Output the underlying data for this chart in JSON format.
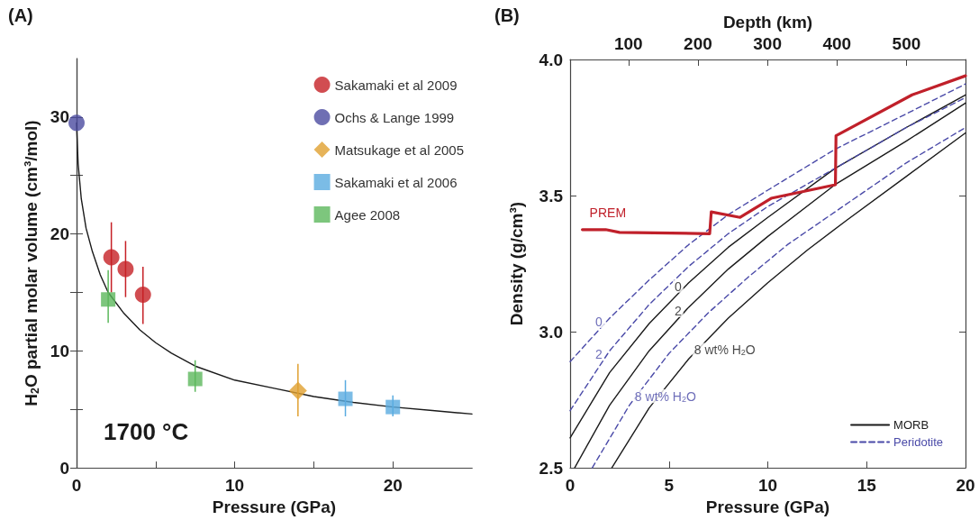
{
  "chart_data": [
    {
      "type": "scatter",
      "title": "(A)",
      "xlabel": "Pressure (GPa)",
      "ylabel": "H$_{2}$O partial molar volume (cm³/mol)",
      "xlim": [
        0,
        25
      ],
      "xticks": [
        0,
        {
          "value": 5,
          "label": null
        },
        10,
        {
          "value": 15,
          "label": null
        },
        20
      ],
      "ylim": [
        0,
        35
      ],
      "yticks": [
        0,
        {
          "value": 5,
          "label": null
        },
        10,
        {
          "value": 15,
          "label": null
        },
        20,
        {
          "value": 25,
          "label": null
        },
        30
      ],
      "grid": false,
      "legend": "top right",
      "annotations": [
        "1700 °C"
      ],
      "series": [
        {
          "type": "line",
          "color": "#1a1a1a",
          "marker": "none",
          "line_style": "solid",
          "x": [
            0,
            0.1,
            0.3,
            0.6,
            1,
            1.5,
            2,
            3,
            4,
            5,
            6,
            7.5,
            10,
            12.5,
            15,
            17.5,
            20,
            22.5,
            25
          ],
          "values": [
            29.5,
            26,
            23,
            20.5,
            18.5,
            16.5,
            15,
            13.2,
            11.8,
            10.7,
            9.8,
            8.7,
            7.5,
            6.8,
            6.1,
            5.6,
            5.2,
            4.9,
            4.6
          ]
        },
        {
          "name": "Sakamaki et al 2009",
          "color": "#c62026",
          "marker": "circle",
          "x": [
            2.2,
            3.1,
            4.2
          ],
          "values": [
            18.0,
            17.0,
            14.8
          ],
          "errors": [
            [
              15,
              21
            ],
            [
              14.6,
              19.4
            ],
            [
              12.3,
              17.2
            ]
          ]
        },
        {
          "name": "Ochs & Lange 1999",
          "color": "#4b4ba0",
          "marker": "circle",
          "x": [
            0
          ],
          "values": [
            29.5
          ]
        },
        {
          "name": "Matsukage et al 2005",
          "color": "#e0a030",
          "marker": "diamond",
          "x": [
            14
          ],
          "values": [
            6.6
          ],
          "errors": [
            [
              4.4,
              8.9
            ]
          ]
        },
        {
          "name": "Sakamaki et al 2006",
          "color": "#5aabe0",
          "marker": "square",
          "x": [
            17,
            20
          ],
          "values": [
            5.9,
            5.2
          ],
          "errors": [
            [
              4.4,
              7.5
            ],
            [
              4.4,
              6.2
            ]
          ]
        },
        {
          "name": "Agee 2008",
          "color": "#5cb85c",
          "marker": "square",
          "x": [
            2.0,
            7.5
          ],
          "values": [
            14.4,
            7.6
          ],
          "errors": [
            [
              12.4,
              16.9
            ],
            [
              6.5,
              9.2
            ]
          ]
        }
      ]
    },
    {
      "type": "line",
      "title": "(B)",
      "xlabel": "Pressure (GPa)",
      "ylabel": "Density (g/cm³)",
      "x2label": "Depth (km)",
      "xlim": [
        0,
        20
      ],
      "xticks": [
        0,
        5,
        10,
        15,
        20
      ],
      "ylim": [
        2.5,
        4.0
      ],
      "yticks": [
        2.5,
        {
          "value": 3,
          "label": "3.0"
        },
        3.5,
        {
          "value": 4,
          "label": "4.0"
        }
      ],
      "x2lim": [
        16,
        585
      ],
      "x2ticks": [
        100,
        200,
        300,
        400,
        500
      ],
      "grid": false,
      "legend": "bottom right",
      "marker": "none",
      "annotations": [
        {
          "text": "0",
          "x": 6,
          "y": 3.18
        },
        {
          "text": "2",
          "x": 6,
          "y": 3.09
        },
        {
          "text": "8 wt% H$_{2}$O",
          "x": 6,
          "y": 2.9
        },
        {
          "text": "0",
          "x": 2,
          "y": 3.05
        },
        {
          "text": "2",
          "x": 2,
          "y": 2.93
        },
        {
          "text": "8 wt% H$_{2}$O",
          "x": 3,
          "y": 2.73
        }
      ],
      "series": [
        {
          "name": "MORB",
          "color": "#1a1a1a",
          "line_style": "solid",
          "x": [
            0,
            2,
            4,
            6,
            8,
            10,
            13.4,
            17,
            20
          ],
          "values": [
            2.61,
            2.85,
            3.03,
            3.18,
            3.31,
            3.42,
            3.6,
            3.75,
            3.87
          ]
        },
        {
          "color": "#1a1a1a",
          "line_style": "solid",
          "x": [
            0.23,
            2,
            4,
            6,
            8,
            10,
            13.4,
            17,
            20
          ],
          "values": [
            2.5,
            2.73,
            2.93,
            3.09,
            3.23,
            3.35,
            3.54,
            3.7,
            3.84
          ]
        },
        {
          "color": "#1a1a1a",
          "line_style": "solid",
          "x": [
            2.11,
            4,
            6,
            8,
            10,
            12,
            14,
            17,
            20
          ],
          "values": [
            2.5,
            2.72,
            2.9,
            3.05,
            3.18,
            3.3,
            3.41,
            3.57,
            3.73
          ]
        },
        {
          "name": "Peridotite",
          "color": "#4a4aa8",
          "line_style": "dashed",
          "x": [
            0,
            2,
            4,
            6,
            8,
            10,
            13.4,
            17,
            20
          ],
          "values": [
            2.89,
            3.05,
            3.19,
            3.32,
            3.43,
            3.52,
            3.67,
            3.8,
            3.91
          ]
        },
        {
          "color": "#4a4aa8",
          "line_style": "dashed",
          "x": [
            0,
            2,
            4,
            6,
            8,
            10,
            13.4,
            17,
            20
          ],
          "values": [
            2.71,
            2.93,
            3.1,
            3.24,
            3.36,
            3.46,
            3.6,
            3.75,
            3.86
          ]
        },
        {
          "color": "#4a4aa8",
          "line_style": "dashed",
          "x": [
            1.12,
            3,
            5,
            7,
            9,
            11,
            13.4,
            17,
            20
          ],
          "values": [
            2.5,
            2.73,
            2.92,
            3.07,
            3.2,
            3.32,
            3.44,
            3.62,
            3.75
          ]
        },
        {
          "name": "PREM",
          "color": "#c0202a",
          "line_style": "solid",
          "x": [
            0.62,
            1.8,
            2.5,
            7.06,
            7.14,
            8.6,
            10.17,
            13.42,
            13.45,
            17.3,
            20
          ],
          "values": [
            3.375,
            3.375,
            3.365,
            3.36,
            3.44,
            3.42,
            3.49,
            3.54,
            3.72,
            3.87,
            3.94
          ]
        }
      ]
    }
  ]
}
